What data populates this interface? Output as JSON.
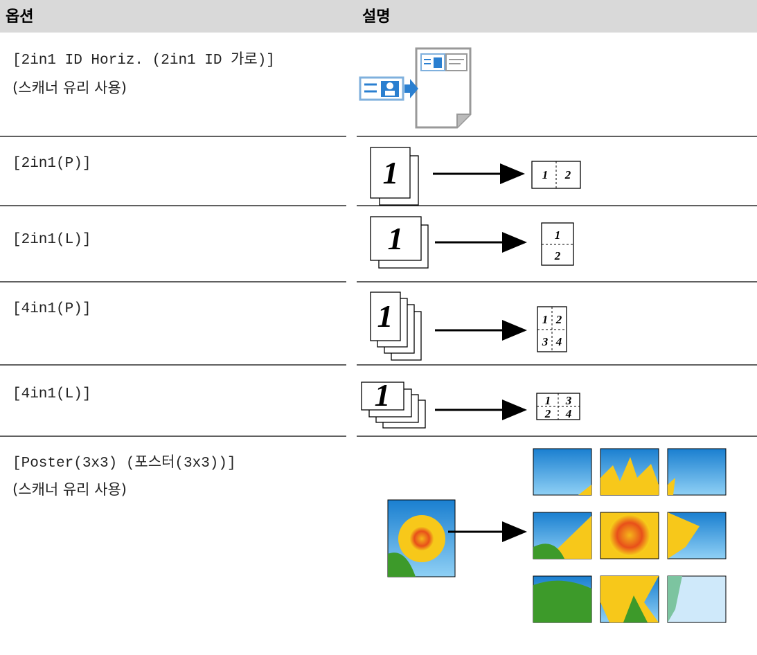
{
  "table": {
    "header": [
      "옵션",
      "설명"
    ],
    "rows": [
      {
        "option": "[2in1 ID Horiz. (2in1 ID 가로)]",
        "note": "(스캐너 유리 사용)"
      },
      {
        "option": "[2in1(P)]",
        "figure": {
          "source": "1",
          "pages": [
            "1",
            "2"
          ]
        }
      },
      {
        "option": "[2in1(L)]",
        "figure": {
          "source": "1",
          "pages": [
            "1",
            "2"
          ]
        }
      },
      {
        "option": "[4in1(P)]",
        "figure": {
          "source": "1",
          "pages": [
            "1",
            "2",
            "3",
            "4"
          ]
        }
      },
      {
        "option": "[4in1(L)]",
        "figure": {
          "source": "1",
          "pages": [
            "1",
            "3",
            "2",
            "4"
          ]
        }
      },
      {
        "option": "[Poster(3x3) (포스터(3x3))]",
        "note": "(스캐너 유리 사용)"
      }
    ]
  }
}
